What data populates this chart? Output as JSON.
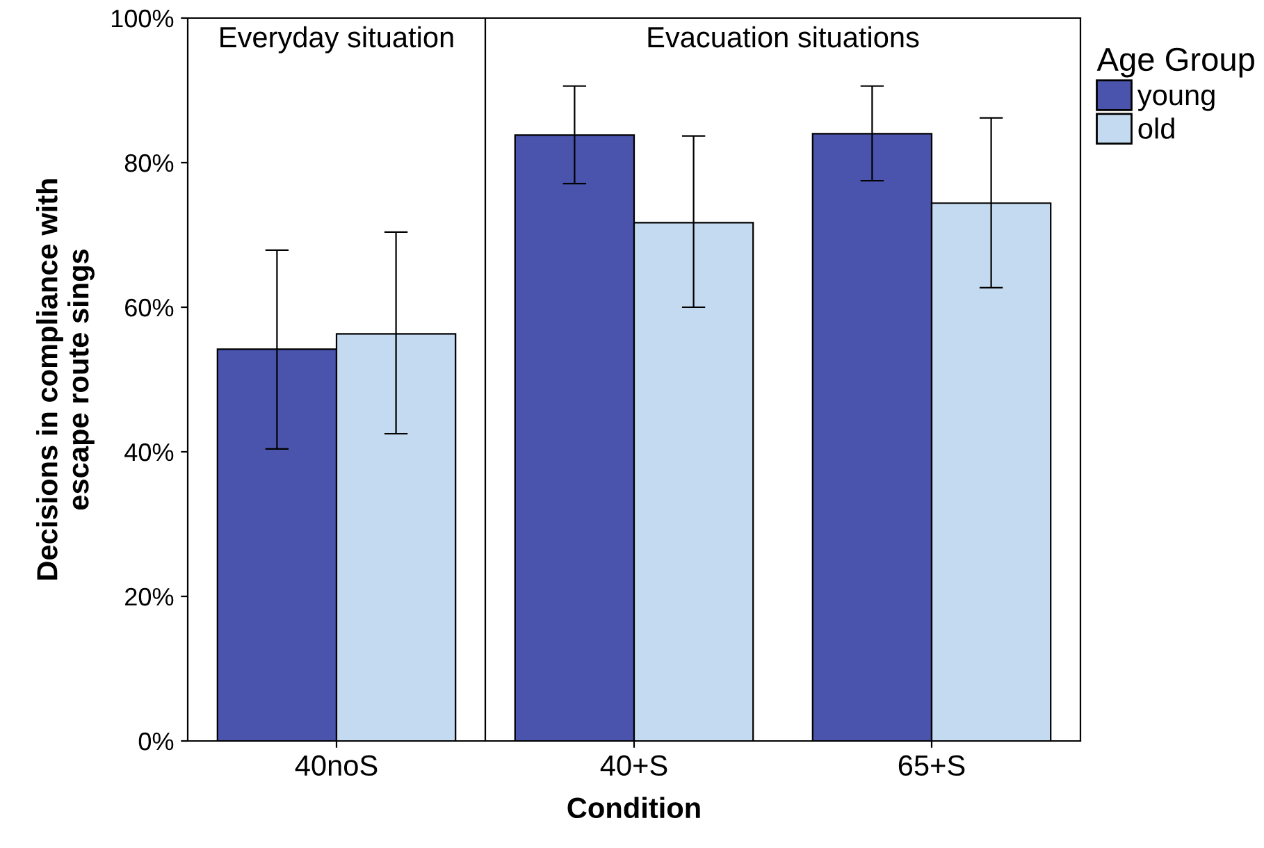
{
  "chart_data": {
    "type": "bar",
    "xlabel": "Condition",
    "ylabel": "Decisions in compliance with\nescape route sings",
    "legend_title": "Age Group",
    "categories": [
      "40noS",
      "40+S",
      "65+S"
    ],
    "series": [
      {
        "name": "young",
        "color": "#4a54ad",
        "values": [
          54.2,
          83.8,
          84.0
        ],
        "errors": [
          [
            40.4,
            67.9
          ],
          [
            77.1,
            90.6
          ],
          [
            77.5,
            90.6
          ]
        ]
      },
      {
        "name": "old",
        "color": "#c3daf1",
        "values": [
          56.3,
          71.7,
          74.4
        ],
        "errors": [
          [
            42.5,
            70.4
          ],
          [
            60.0,
            83.7
          ],
          [
            62.7,
            86.2
          ]
        ]
      }
    ],
    "ylim": [
      0,
      100
    ],
    "yticks": [
      {
        "value": 0,
        "label": "0%"
      },
      {
        "value": 20,
        "label": "20%"
      },
      {
        "value": 40,
        "label": "40%"
      },
      {
        "value": 60,
        "label": "60%"
      },
      {
        "value": 80,
        "label": "80%"
      },
      {
        "value": 100,
        "label": "100%"
      }
    ],
    "annotations": [
      "Everyday situation",
      "Evacuation situations"
    ],
    "grid": false,
    "legend": "right"
  }
}
